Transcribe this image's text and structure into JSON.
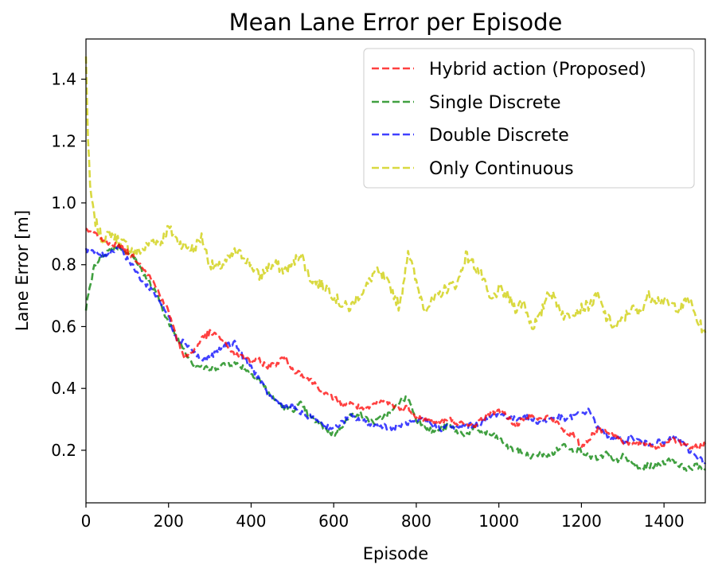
{
  "chart_data": {
    "type": "line",
    "title": "Mean Lane Error per Episode",
    "xlabel": "Episode",
    "ylabel": "Lane Error [m]",
    "xlim": [
      0,
      1500
    ],
    "ylim": [
      0.03,
      1.53
    ],
    "xticks": [
      0,
      200,
      400,
      600,
      800,
      1000,
      1200,
      1400
    ],
    "yticks": [
      0.2,
      0.4,
      0.6,
      0.8,
      1.0,
      1.2,
      1.4
    ],
    "xtick_labels": [
      "0",
      "200",
      "400",
      "600",
      "800",
      "1000",
      "1200",
      "1400"
    ],
    "ytick_labels": [
      "0.2",
      "0.4",
      "0.6",
      "0.8",
      "1.0",
      "1.2",
      "1.4"
    ],
    "grid": false,
    "legend_position": "top-right",
    "series": [
      {
        "name": "Hybrid action (Proposed)",
        "color": "#ff0000",
        "x": [
          0,
          20,
          40,
          60,
          80,
          100,
          120,
          140,
          160,
          180,
          200,
          220,
          240,
          260,
          280,
          300,
          320,
          340,
          360,
          380,
          400,
          420,
          440,
          460,
          480,
          500,
          520,
          540,
          560,
          580,
          600,
          620,
          640,
          660,
          680,
          700,
          720,
          740,
          760,
          780,
          800,
          820,
          840,
          860,
          880,
          900,
          920,
          940,
          960,
          980,
          1000,
          1020,
          1040,
          1060,
          1080,
          1100,
          1120,
          1140,
          1160,
          1180,
          1200,
          1220,
          1240,
          1260,
          1280,
          1300,
          1320,
          1340,
          1360,
          1380,
          1400,
          1420,
          1440,
          1460,
          1480,
          1500
        ],
        "values": [
          0.91,
          0.9,
          0.88,
          0.87,
          0.86,
          0.84,
          0.82,
          0.79,
          0.75,
          0.7,
          0.65,
          0.56,
          0.5,
          0.52,
          0.56,
          0.58,
          0.57,
          0.54,
          0.51,
          0.5,
          0.49,
          0.49,
          0.47,
          0.48,
          0.5,
          0.46,
          0.45,
          0.43,
          0.41,
          0.38,
          0.37,
          0.35,
          0.35,
          0.34,
          0.33,
          0.35,
          0.36,
          0.35,
          0.33,
          0.34,
          0.31,
          0.3,
          0.29,
          0.29,
          0.3,
          0.29,
          0.28,
          0.28,
          0.3,
          0.32,
          0.33,
          0.31,
          0.28,
          0.3,
          0.32,
          0.3,
          0.31,
          0.29,
          0.26,
          0.25,
          0.21,
          0.24,
          0.27,
          0.26,
          0.25,
          0.23,
          0.22,
          0.22,
          0.22,
          0.21,
          0.22,
          0.24,
          0.22,
          0.21,
          0.21,
          0.22
        ]
      },
      {
        "name": "Single Discrete",
        "color": "#008000",
        "x": [
          0,
          20,
          40,
          60,
          80,
          100,
          120,
          140,
          160,
          180,
          200,
          220,
          240,
          260,
          280,
          300,
          320,
          340,
          360,
          380,
          400,
          420,
          440,
          460,
          480,
          500,
          520,
          540,
          560,
          580,
          600,
          620,
          640,
          660,
          680,
          700,
          720,
          740,
          760,
          780,
          800,
          820,
          840,
          860,
          880,
          900,
          920,
          940,
          960,
          980,
          1000,
          1020,
          1040,
          1060,
          1080,
          1100,
          1120,
          1140,
          1160,
          1180,
          1200,
          1220,
          1240,
          1260,
          1280,
          1300,
          1320,
          1340,
          1360,
          1380,
          1400,
          1420,
          1440,
          1460,
          1480,
          1500
        ],
        "values": [
          0.66,
          0.8,
          0.83,
          0.85,
          0.86,
          0.84,
          0.82,
          0.77,
          0.73,
          0.68,
          0.61,
          0.57,
          0.52,
          0.48,
          0.47,
          0.46,
          0.47,
          0.48,
          0.48,
          0.47,
          0.45,
          0.43,
          0.39,
          0.36,
          0.34,
          0.33,
          0.35,
          0.31,
          0.29,
          0.27,
          0.25,
          0.28,
          0.31,
          0.32,
          0.3,
          0.29,
          0.31,
          0.32,
          0.36,
          0.37,
          0.3,
          0.28,
          0.26,
          0.27,
          0.28,
          0.26,
          0.25,
          0.27,
          0.26,
          0.25,
          0.24,
          0.21,
          0.2,
          0.19,
          0.18,
          0.19,
          0.18,
          0.2,
          0.22,
          0.2,
          0.2,
          0.18,
          0.17,
          0.19,
          0.16,
          0.18,
          0.16,
          0.14,
          0.15,
          0.15,
          0.16,
          0.17,
          0.15,
          0.14,
          0.15,
          0.14
        ]
      },
      {
        "name": "Double Discrete",
        "color": "#0000ff",
        "x": [
          0,
          20,
          40,
          60,
          80,
          100,
          120,
          140,
          160,
          180,
          200,
          220,
          240,
          260,
          280,
          300,
          320,
          340,
          360,
          380,
          400,
          420,
          440,
          460,
          480,
          500,
          520,
          540,
          560,
          580,
          600,
          620,
          640,
          660,
          680,
          700,
          720,
          740,
          760,
          780,
          800,
          820,
          840,
          860,
          880,
          900,
          920,
          940,
          960,
          980,
          1000,
          1020,
          1040,
          1060,
          1080,
          1100,
          1120,
          1140,
          1160,
          1180,
          1200,
          1220,
          1240,
          1260,
          1280,
          1300,
          1320,
          1340,
          1360,
          1380,
          1400,
          1420,
          1440,
          1460,
          1480,
          1500
        ],
        "values": [
          0.85,
          0.84,
          0.83,
          0.84,
          0.86,
          0.82,
          0.78,
          0.74,
          0.72,
          0.68,
          0.63,
          0.56,
          0.55,
          0.52,
          0.49,
          0.5,
          0.52,
          0.54,
          0.55,
          0.5,
          0.47,
          0.43,
          0.38,
          0.36,
          0.34,
          0.34,
          0.32,
          0.31,
          0.3,
          0.28,
          0.27,
          0.29,
          0.31,
          0.3,
          0.29,
          0.28,
          0.28,
          0.27,
          0.28,
          0.29,
          0.29,
          0.3,
          0.28,
          0.27,
          0.28,
          0.27,
          0.28,
          0.28,
          0.29,
          0.31,
          0.32,
          0.31,
          0.3,
          0.31,
          0.3,
          0.29,
          0.3,
          0.31,
          0.3,
          0.31,
          0.32,
          0.33,
          0.27,
          0.25,
          0.24,
          0.23,
          0.24,
          0.23,
          0.22,
          0.23,
          0.22,
          0.24,
          0.23,
          0.2,
          0.18,
          0.16
        ]
      },
      {
        "name": "Only Continuous",
        "color": "#cccc00",
        "x": [
          0,
          5,
          10,
          20,
          40,
          60,
          80,
          100,
          120,
          140,
          160,
          180,
          200,
          220,
          240,
          260,
          280,
          300,
          320,
          340,
          360,
          380,
          400,
          420,
          440,
          460,
          480,
          500,
          520,
          540,
          560,
          580,
          600,
          620,
          640,
          660,
          680,
          700,
          720,
          740,
          760,
          780,
          800,
          820,
          840,
          860,
          880,
          900,
          920,
          940,
          960,
          980,
          1000,
          1020,
          1040,
          1060,
          1080,
          1100,
          1120,
          1140,
          1160,
          1180,
          1200,
          1220,
          1240,
          1260,
          1280,
          1300,
          1320,
          1340,
          1360,
          1380,
          1400,
          1420,
          1440,
          1460,
          1480,
          1500
        ],
        "values": [
          1.47,
          1.2,
          1.05,
          0.95,
          0.88,
          0.9,
          0.88,
          0.86,
          0.84,
          0.85,
          0.88,
          0.87,
          0.92,
          0.88,
          0.86,
          0.85,
          0.89,
          0.8,
          0.79,
          0.81,
          0.84,
          0.83,
          0.8,
          0.76,
          0.79,
          0.8,
          0.78,
          0.8,
          0.84,
          0.76,
          0.74,
          0.73,
          0.7,
          0.67,
          0.66,
          0.7,
          0.73,
          0.78,
          0.76,
          0.72,
          0.66,
          0.85,
          0.74,
          0.66,
          0.68,
          0.71,
          0.73,
          0.74,
          0.83,
          0.8,
          0.76,
          0.68,
          0.72,
          0.7,
          0.66,
          0.68,
          0.6,
          0.63,
          0.72,
          0.68,
          0.63,
          0.65,
          0.66,
          0.67,
          0.7,
          0.63,
          0.6,
          0.62,
          0.66,
          0.64,
          0.7,
          0.69,
          0.68,
          0.67,
          0.66,
          0.69,
          0.62,
          0.58
        ]
      }
    ]
  }
}
